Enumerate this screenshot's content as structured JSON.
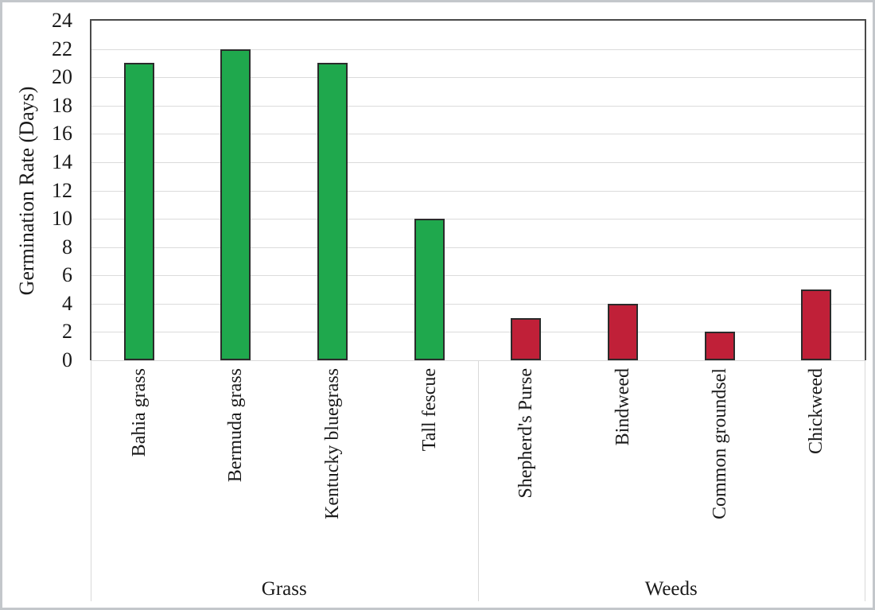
{
  "chart_data": {
    "type": "bar",
    "title": "",
    "xlabel": "",
    "ylabel": "Germination Rate (Days)",
    "ylim": [
      0,
      24
    ],
    "ytick_step": 2,
    "yticks": [
      0,
      2,
      4,
      6,
      8,
      10,
      12,
      14,
      16,
      18,
      20,
      22,
      24
    ],
    "grid": "horizontal",
    "legend": "none",
    "groups": [
      {
        "label": "Grass",
        "bar_color": "#1FA84D",
        "bar_border_color": "#2B2B2B",
        "categories": [
          "Bahia grass",
          "Bermuda grass",
          "Kentucky bluegrass",
          "Tall fescue"
        ],
        "values": [
          21,
          22,
          21,
          10
        ]
      },
      {
        "label": "Weeds",
        "bar_color": "#C02038",
        "bar_border_color": "#2B2B2B",
        "categories": [
          "Shepherd's Purse",
          "Bindweed",
          "Common groundsel",
          "Chickweed"
        ],
        "values": [
          3,
          4,
          2,
          5
        ]
      }
    ],
    "colors": {
      "grid": "#DBDBDB",
      "axis": "#4A4A4A",
      "category_divider": "#D9D9D9",
      "text": "#1A1A1A",
      "frame_border": "#C3C7CB",
      "background": "#FFFFFF"
    }
  }
}
